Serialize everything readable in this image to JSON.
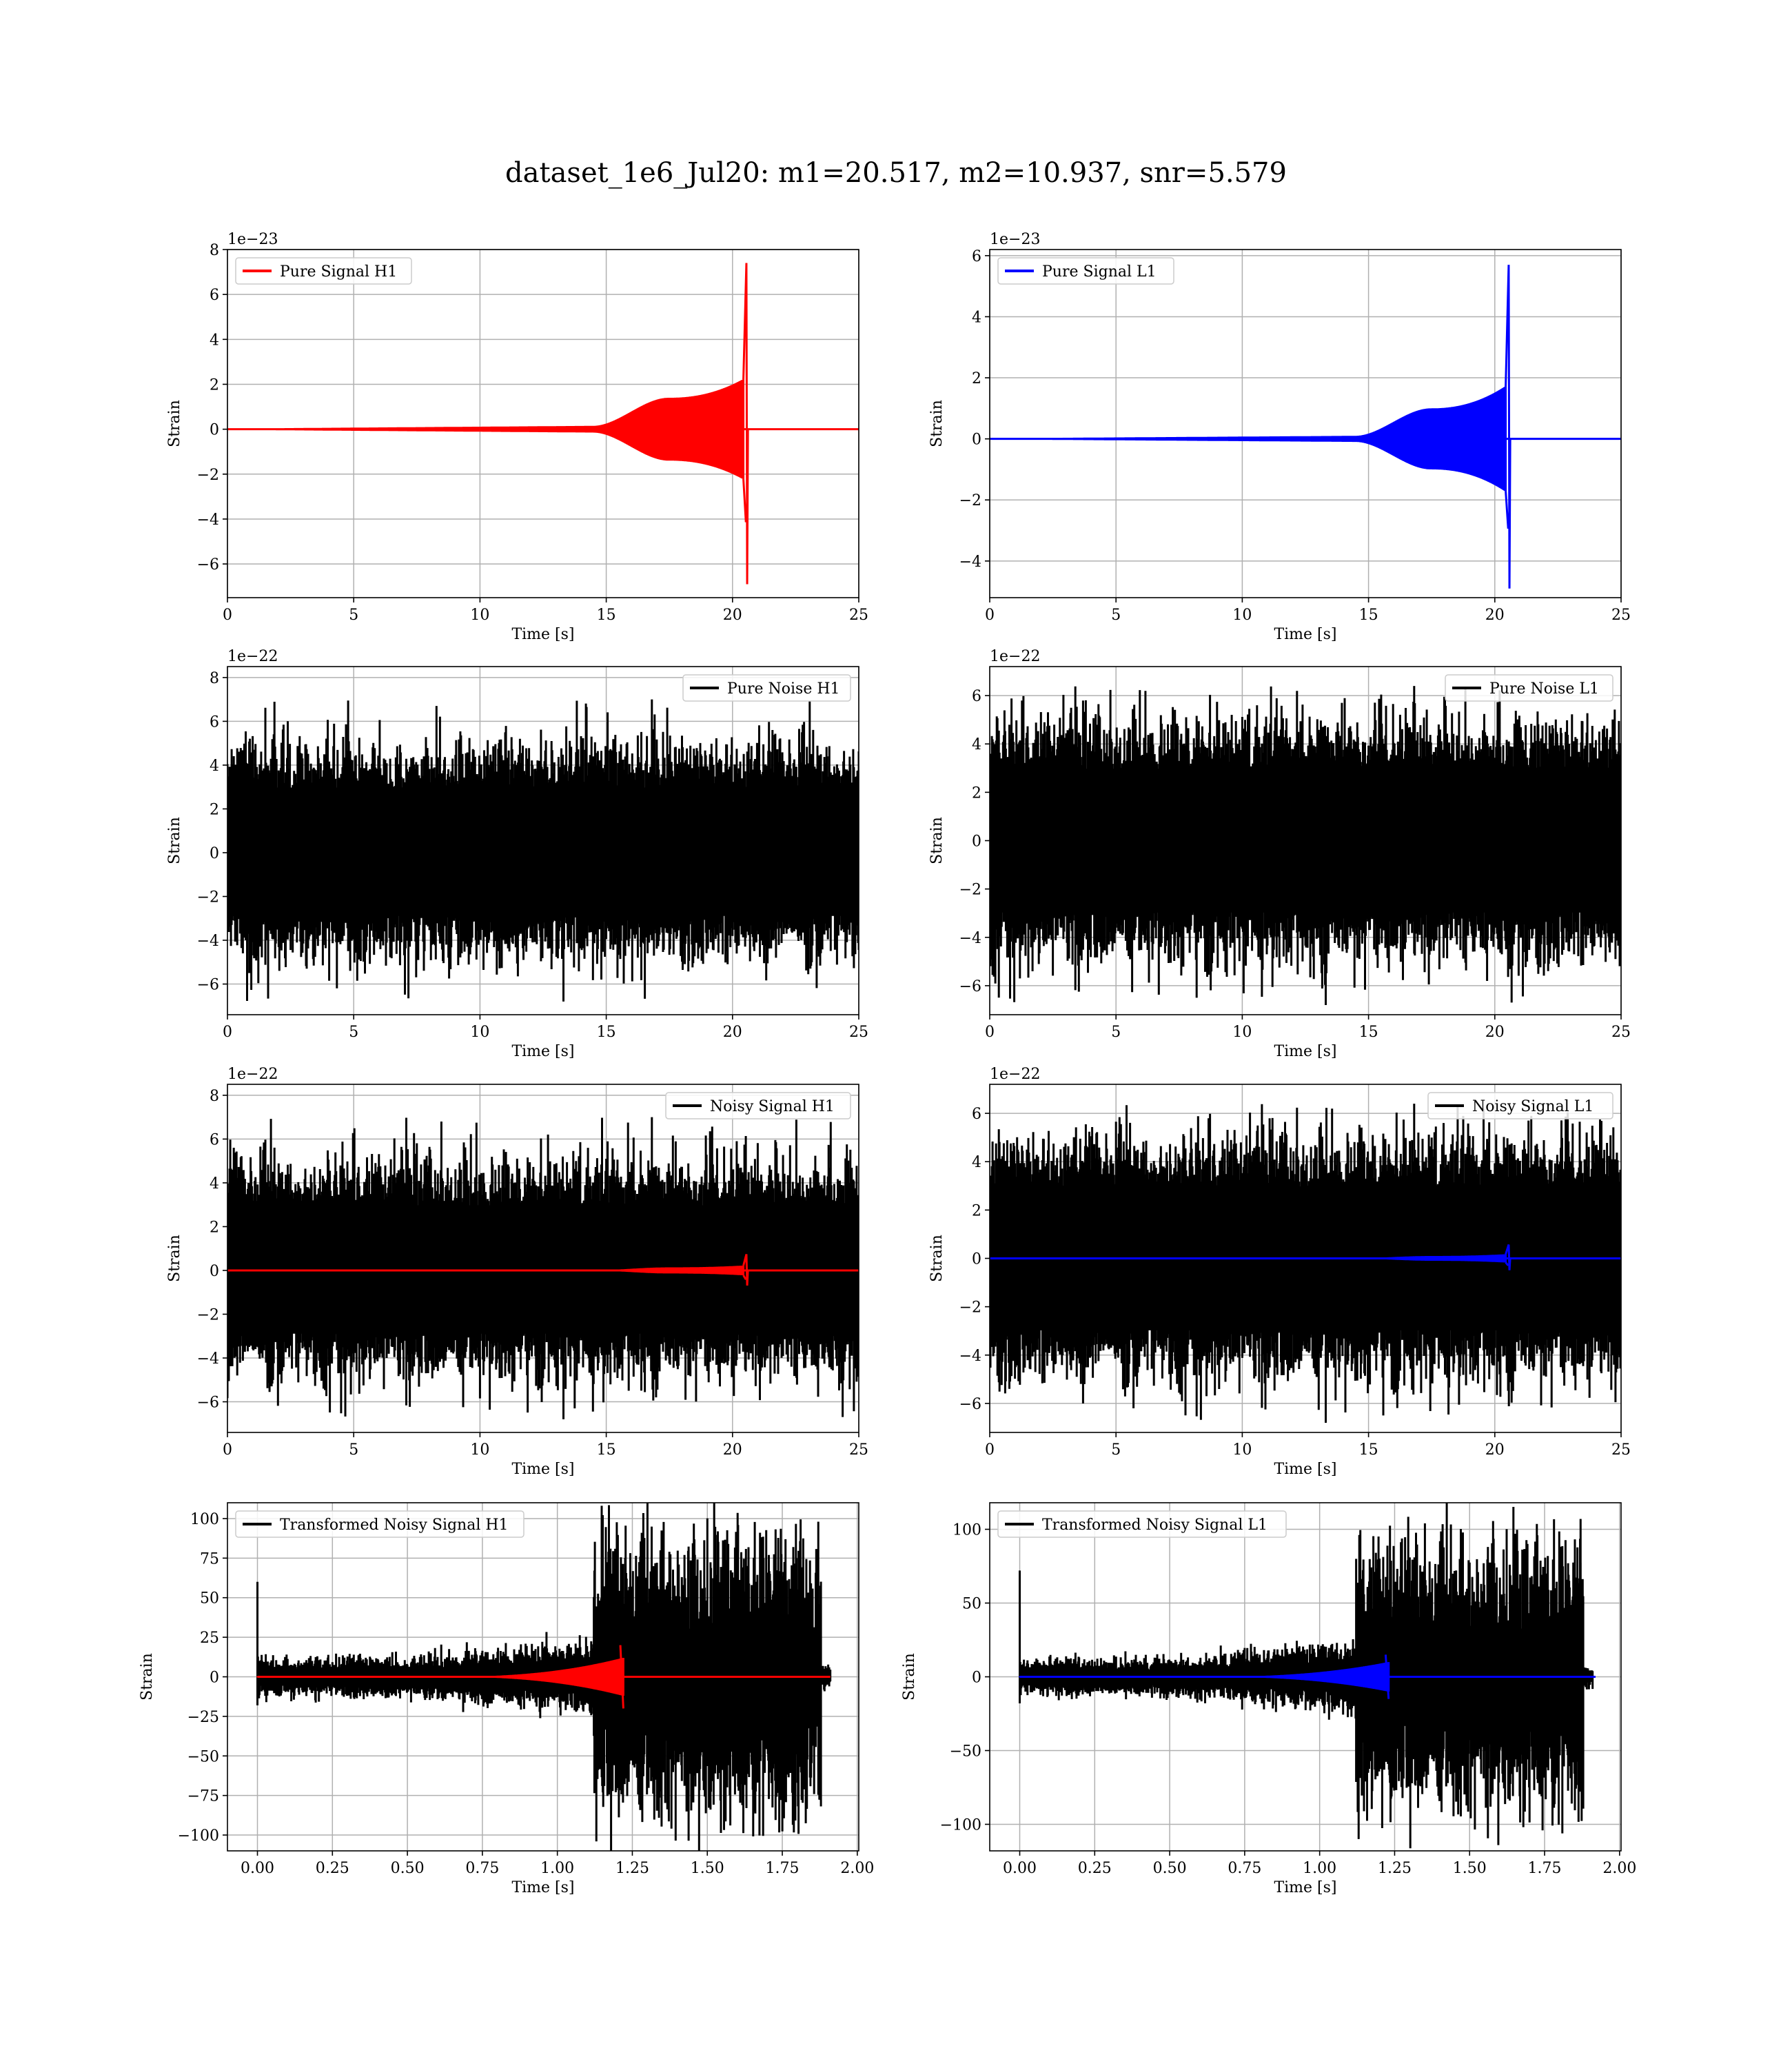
{
  "title": "dataset_1e6_Jul20: m1=20.517, m2=10.937, snr=5.579",
  "colors": {
    "h1_signal": "#ff0000",
    "l1_signal": "#0000ff",
    "noise": "#000000",
    "grid": "#b0b0b0"
  },
  "chart_data": [
    {
      "type": "line",
      "detector": "H1",
      "legend": "Pure Signal H1",
      "legend_loc": "upper left",
      "xlabel": "Time [s]",
      "ylabel": "Strain",
      "offset_text": "1e−23",
      "xlim": [
        0,
        25
      ],
      "ylim": [
        -7.5,
        8
      ],
      "xticks": [
        0,
        5,
        10,
        15,
        20,
        25
      ],
      "xtick_labels": [
        "0",
        "5",
        "10",
        "15",
        "20",
        "25"
      ],
      "yticks": [
        -6,
        -4,
        -2,
        0,
        2,
        4,
        6,
        8
      ],
      "ytick_labels": [
        "−6",
        "−4",
        "−2",
        "0",
        "2",
        "4",
        "6",
        "8"
      ],
      "grid": true,
      "series": [
        {
          "kind": "chirp",
          "color": "#ff0000",
          "t_merge": 20.55,
          "early_amp": 0.15,
          "plateau_amp": 1.4,
          "pre_merge_amp": 2.2,
          "peak_pos": 7.4,
          "peak_neg": -6.9
        }
      ]
    },
    {
      "type": "line",
      "detector": "L1",
      "legend": "Pure Signal L1",
      "legend_loc": "upper left",
      "xlabel": "Time [s]",
      "ylabel": "Strain",
      "offset_text": "1e−23",
      "xlim": [
        0,
        25
      ],
      "ylim": [
        -5.2,
        6.2
      ],
      "xticks": [
        0,
        5,
        10,
        15,
        20,
        25
      ],
      "xtick_labels": [
        "0",
        "5",
        "10",
        "15",
        "20",
        "25"
      ],
      "yticks": [
        -4,
        -2,
        0,
        2,
        4,
        6
      ],
      "ytick_labels": [
        "−4",
        "−2",
        "0",
        "2",
        "4",
        "6"
      ],
      "grid": true,
      "series": [
        {
          "kind": "chirp",
          "color": "#0000ff",
          "t_merge": 20.55,
          "early_amp": 0.1,
          "plateau_amp": 1.0,
          "pre_merge_amp": 1.7,
          "peak_pos": 5.7,
          "peak_neg": -4.9
        }
      ]
    },
    {
      "type": "line",
      "detector": "H1",
      "legend": "Pure Noise H1",
      "legend_loc": "upper right",
      "xlabel": "Time [s]",
      "ylabel": "Strain",
      "offset_text": "1e−22",
      "xlim": [
        0,
        25
      ],
      "ylim": [
        -7.4,
        8.5
      ],
      "xticks": [
        0,
        5,
        10,
        15,
        20,
        25
      ],
      "xtick_labels": [
        "0",
        "5",
        "10",
        "15",
        "20",
        "25"
      ],
      "yticks": [
        -6,
        -4,
        -2,
        0,
        2,
        4,
        6,
        8
      ],
      "ytick_labels": [
        "−6",
        "−4",
        "−2",
        "0",
        "2",
        "4",
        "6",
        "8"
      ],
      "grid": true,
      "series": [
        {
          "kind": "noise",
          "color": "#000000",
          "band_pos": 3.5,
          "band_neg": -3.4,
          "spike_max": 7.0,
          "spike_min": -6.8
        }
      ]
    },
    {
      "type": "line",
      "detector": "L1",
      "legend": "Pure Noise L1",
      "legend_loc": "upper right",
      "xlabel": "Time [s]",
      "ylabel": "Strain",
      "offset_text": "1e−22",
      "xlim": [
        0,
        25
      ],
      "ylim": [
        -7.2,
        7.2
      ],
      "xticks": [
        0,
        5,
        10,
        15,
        20,
        25
      ],
      "xtick_labels": [
        "0",
        "5",
        "10",
        "15",
        "20",
        "25"
      ],
      "yticks": [
        -6,
        -4,
        -2,
        0,
        2,
        4,
        6
      ],
      "ytick_labels": [
        "−6",
        "−4",
        "−2",
        "0",
        "2",
        "4",
        "6"
      ],
      "grid": true,
      "series": [
        {
          "kind": "noise",
          "color": "#000000",
          "band_pos": 3.5,
          "band_neg": -3.5,
          "spike_max": 6.4,
          "spike_min": -6.8
        }
      ]
    },
    {
      "type": "line",
      "detector": "H1",
      "legend": "Noisy Signal H1",
      "legend_loc": "upper right",
      "xlabel": "Time [s]",
      "ylabel": "Strain",
      "offset_text": "1e−22",
      "xlim": [
        0,
        25
      ],
      "ylim": [
        -7.4,
        8.5
      ],
      "xticks": [
        0,
        5,
        10,
        15,
        20,
        25
      ],
      "xtick_labels": [
        "0",
        "5",
        "10",
        "15",
        "20",
        "25"
      ],
      "yticks": [
        -6,
        -4,
        -2,
        0,
        2,
        4,
        6,
        8
      ],
      "ytick_labels": [
        "−6",
        "−4",
        "−2",
        "0",
        "2",
        "4",
        "6",
        "8"
      ],
      "grid": true,
      "series": [
        {
          "kind": "noise",
          "color": "#000000",
          "band_pos": 3.5,
          "band_neg": -3.4,
          "spike_max": 7.0,
          "spike_min": -6.8
        },
        {
          "kind": "chirp",
          "color": "#ff0000",
          "t_merge": 20.55,
          "early_amp": 0.01,
          "plateau_amp": 0.14,
          "pre_merge_amp": 0.22,
          "peak_pos": 0.74,
          "peak_neg": -0.69
        }
      ]
    },
    {
      "type": "line",
      "detector": "L1",
      "legend": "Noisy Signal L1",
      "legend_loc": "upper right",
      "xlabel": "Time [s]",
      "ylabel": "Strain",
      "offset_text": "1e−22",
      "xlim": [
        0,
        25
      ],
      "ylim": [
        -7.2,
        7.2
      ],
      "xticks": [
        0,
        5,
        10,
        15,
        20,
        25
      ],
      "xtick_labels": [
        "0",
        "5",
        "10",
        "15",
        "20",
        "25"
      ],
      "yticks": [
        -6,
        -4,
        -2,
        0,
        2,
        4,
        6
      ],
      "ytick_labels": [
        "−6",
        "−4",
        "−2",
        "0",
        "2",
        "4",
        "6"
      ],
      "grid": true,
      "series": [
        {
          "kind": "noise",
          "color": "#000000",
          "band_pos": 3.5,
          "band_neg": -3.5,
          "spike_max": 6.4,
          "spike_min": -6.8
        },
        {
          "kind": "chirp",
          "color": "#0000ff",
          "t_merge": 20.55,
          "early_amp": 0.01,
          "plateau_amp": 0.1,
          "pre_merge_amp": 0.17,
          "peak_pos": 0.57,
          "peak_neg": -0.49
        }
      ]
    },
    {
      "type": "line",
      "detector": "H1",
      "legend": "Transformed Noisy Signal H1",
      "legend_loc": "upper left",
      "xlabel": "Time [s]",
      "ylabel": "Strain",
      "offset_text": "",
      "xlim": [
        -0.1,
        2.005
      ],
      "ylim": [
        -110,
        110
      ],
      "xticks": [
        0,
        0.25,
        0.5,
        0.75,
        1.0,
        1.25,
        1.5,
        1.75,
        2.0
      ],
      "xtick_labels": [
        "0.00",
        "0.25",
        "0.50",
        "0.75",
        "1.00",
        "1.25",
        "1.50",
        "1.75",
        "2.00"
      ],
      "yticks": [
        -100,
        -75,
        -50,
        -25,
        0,
        25,
        50,
        75,
        100
      ],
      "ytick_labels": [
        "−100",
        "−75",
        "−50",
        "−25",
        "0",
        "25",
        "50",
        "75",
        "100"
      ],
      "grid": true,
      "series": [
        {
          "kind": "whitened",
          "color": "#000000",
          "t_end": 1.91,
          "t_jump": 1.12,
          "t_burst_end": 1.88,
          "start_spike": 60,
          "low_amp": 8,
          "mid_amp": 15,
          "high_amp": 55,
          "spike_max": 98,
          "spike_min": -104
        },
        {
          "kind": "chirp_short",
          "color": "#ff0000",
          "t_merge": 1.22,
          "pre_amp": 12,
          "peak_pos": 20,
          "peak_neg": -20
        }
      ]
    },
    {
      "type": "line",
      "detector": "L1",
      "legend": "Transformed Noisy Signal L1",
      "legend_loc": "upper left",
      "xlabel": "Time [s]",
      "ylabel": "Strain",
      "offset_text": "",
      "xlim": [
        -0.1,
        2.005
      ],
      "ylim": [
        -118,
        118
      ],
      "xticks": [
        0,
        0.25,
        0.5,
        0.75,
        1.0,
        1.25,
        1.5,
        1.75,
        2.0
      ],
      "xtick_labels": [
        "0.00",
        "0.25",
        "0.50",
        "0.75",
        "1.00",
        "1.25",
        "1.50",
        "1.75",
        "2.00"
      ],
      "yticks": [
        -100,
        -50,
        0,
        50,
        100
      ],
      "ytick_labels": [
        "−100",
        "−50",
        "0",
        "50",
        "100"
      ],
      "grid": true,
      "series": [
        {
          "kind": "whitened",
          "color": "#000000",
          "t_end": 1.91,
          "t_jump": 1.12,
          "t_burst_end": 1.88,
          "start_spike": 72,
          "low_amp": 8,
          "mid_amp": 15,
          "high_amp": 55,
          "spike_max": 107,
          "spike_min": -110
        },
        {
          "kind": "chirp_short",
          "color": "#0000ff",
          "t_merge": 1.23,
          "pre_amp": 10,
          "peak_pos": 15,
          "peak_neg": -15
        }
      ]
    }
  ]
}
